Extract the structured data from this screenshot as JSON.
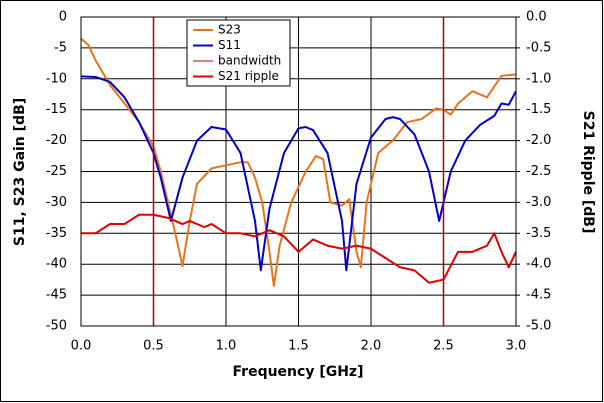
{
  "chart_data": {
    "type": "line",
    "xlabel": "Frequency [GHz]",
    "ylabel": "S11, S23 Gain [dB]",
    "y2label": "S21 Ripple [dB]",
    "xlim": [
      0,
      3
    ],
    "xticks": [
      {
        "value": 0,
        "label": "0.0"
      },
      0.5,
      {
        "value": 1,
        "label": "1.0"
      },
      1.5,
      {
        "value": 2,
        "label": "2.0"
      },
      2.5,
      {
        "value": 3,
        "label": "3.0"
      }
    ],
    "ylim": [
      -50,
      0
    ],
    "yticks": [
      0,
      -5,
      -10,
      -15,
      -20,
      -25,
      -30,
      -35,
      -40,
      -45,
      -50
    ],
    "y2lim": [
      -5,
      0
    ],
    "y2ticks": [
      {
        "value": 0,
        "label": "0.0"
      },
      {
        "value": -0.5,
        "label": "-0.5"
      },
      {
        "value": -1,
        "label": "-1.0"
      },
      {
        "value": -1.5,
        "label": "-1.5"
      },
      {
        "value": -2,
        "label": "-2.0"
      },
      {
        "value": -2.5,
        "label": "-2.5"
      },
      {
        "value": -3,
        "label": "-3.0"
      },
      {
        "value": -3.5,
        "label": "-3.5"
      },
      {
        "value": -4,
        "label": "-4.0"
      },
      {
        "value": -4.5,
        "label": "-4.5"
      },
      {
        "value": -5,
        "label": "-5.0"
      }
    ],
    "grid": true,
    "series": [
      {
        "name": "S23",
        "color": "#e8741e",
        "x": [
          0,
          0.05,
          0.1,
          0.2,
          0.3,
          0.4,
          0.5,
          0.55,
          0.6,
          0.65,
          0.7,
          0.75,
          0.8,
          0.9,
          1.0,
          1.1,
          1.15,
          1.2,
          1.25,
          1.3,
          1.33,
          1.37,
          1.45,
          1.55,
          1.62,
          1.67,
          1.72,
          1.8,
          1.85,
          1.9,
          1.93,
          1.97,
          2.05,
          2.15,
          2.25,
          2.35,
          2.45,
          2.5,
          2.55,
          2.6,
          2.7,
          2.8,
          2.9,
          3.0
        ],
        "values": [
          -3.5,
          -4.5,
          -7,
          -11,
          -14,
          -17,
          -21,
          -25,
          -30,
          -35,
          -40.3,
          -33,
          -27,
          -24.5,
          -24,
          -23.5,
          -23.5,
          -26,
          -30,
          -38,
          -43.5,
          -37,
          -30,
          -25,
          -22.5,
          -23,
          -30,
          -30.5,
          -29.5,
          -38,
          -40.5,
          -30,
          -22,
          -20,
          -17,
          -16.5,
          -14.8,
          -15,
          -15.8,
          -14,
          -12,
          -13,
          -9.5,
          -9.3
        ]
      },
      {
        "name": "S11",
        "color": "#0000cc",
        "x": [
          0,
          0.1,
          0.2,
          0.3,
          0.4,
          0.5,
          0.55,
          0.62,
          0.7,
          0.8,
          0.9,
          1.0,
          1.1,
          1.2,
          1.24,
          1.3,
          1.4,
          1.5,
          1.55,
          1.6,
          1.7,
          1.8,
          1.83,
          1.9,
          2.0,
          2.1,
          2.15,
          2.2,
          2.3,
          2.4,
          2.47,
          2.55,
          2.65,
          2.75,
          2.85,
          2.9,
          2.95,
          3.0
        ],
        "values": [
          -9.6,
          -9.7,
          -10.5,
          -13,
          -17,
          -22,
          -26,
          -33,
          -26,
          -20,
          -17.8,
          -18.2,
          -22,
          -33,
          -41,
          -31,
          -22,
          -18,
          -17.8,
          -18.3,
          -22,
          -33,
          -41,
          -27,
          -19.5,
          -16.5,
          -16.2,
          -16.5,
          -19,
          -25,
          -33,
          -25,
          -20,
          -17.5,
          -16,
          -14,
          -14.2,
          -12
        ]
      },
      {
        "name": "bandwidth",
        "color": "#b00000",
        "vlines": [
          0.5,
          2.5
        ]
      },
      {
        "name": "S21 ripple",
        "color": "#e00000",
        "axis": "y2",
        "x": [
          0,
          0.1,
          0.2,
          0.3,
          0.4,
          0.45,
          0.5,
          0.6,
          0.7,
          0.75,
          0.85,
          0.9,
          1.0,
          1.1,
          1.2,
          1.3,
          1.4,
          1.5,
          1.6,
          1.7,
          1.8,
          1.9,
          2.0,
          2.1,
          2.2,
          2.3,
          2.4,
          2.5,
          2.6,
          2.7,
          2.8,
          2.85,
          2.9,
          2.95,
          3.0
        ],
        "values": [
          -3.5,
          -3.5,
          -3.35,
          -3.35,
          -3.2,
          -3.2,
          -3.2,
          -3.25,
          -3.35,
          -3.3,
          -3.4,
          -3.35,
          -3.5,
          -3.5,
          -3.55,
          -3.45,
          -3.55,
          -3.8,
          -3.6,
          -3.7,
          -3.75,
          -3.7,
          -3.75,
          -3.9,
          -4.05,
          -4.1,
          -4.3,
          -4.25,
          -3.8,
          -3.8,
          -3.7,
          -3.5,
          -3.8,
          -4.05,
          -3.8
        ]
      }
    ]
  }
}
